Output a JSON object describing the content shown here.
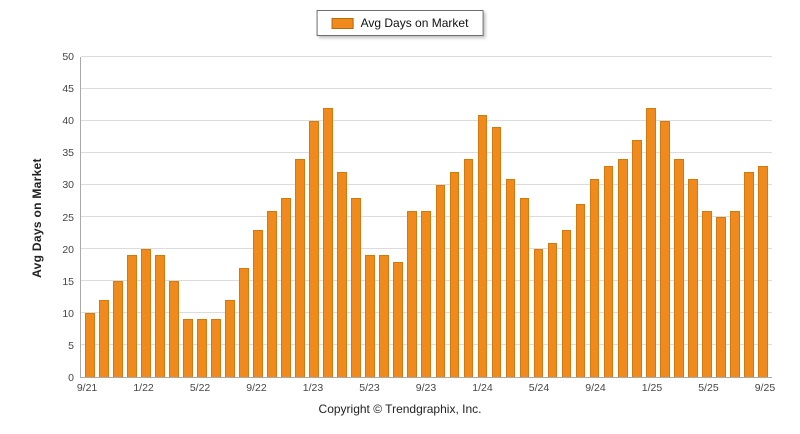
{
  "legend": {
    "label": "Avg Days on Market",
    "swatch_color": "#F18A1D"
  },
  "footer": {
    "copyright": "Copyright © Trendgraphix, Inc."
  },
  "chart_data": {
    "type": "bar",
    "title": "",
    "xlabel": "",
    "ylabel": "Avg Days on Market",
    "ylim": [
      0,
      50
    ],
    "ytick_step": 5,
    "grid": true,
    "legend_position": "top-center",
    "bar_color": "#F18A1D",
    "categories": [
      "9/21",
      "10/21",
      "11/21",
      "12/21",
      "1/22",
      "2/22",
      "3/22",
      "4/22",
      "5/22",
      "6/22",
      "7/22",
      "8/22",
      "9/22",
      "10/22",
      "11/22",
      "12/22",
      "1/23",
      "2/23",
      "3/23",
      "4/23",
      "5/23",
      "6/23",
      "7/23",
      "8/23",
      "9/23",
      "10/23",
      "11/23",
      "12/23",
      "1/24",
      "2/24",
      "3/24",
      "4/24",
      "5/24",
      "6/24",
      "7/24",
      "8/24",
      "9/24",
      "10/24",
      "11/24",
      "12/24",
      "1/25",
      "2/25",
      "3/25",
      "4/25",
      "5/25",
      "6/25",
      "7/25",
      "8/25",
      "9/25"
    ],
    "values": [
      10,
      12,
      15,
      19,
      20,
      19,
      15,
      9,
      9,
      9,
      12,
      17,
      23,
      26,
      28,
      34,
      40,
      42,
      32,
      28,
      19,
      19,
      18,
      26,
      26,
      30,
      32,
      34,
      41,
      39,
      31,
      28,
      20,
      21,
      23,
      27,
      31,
      33,
      34,
      37,
      42,
      40,
      34,
      31,
      26,
      25,
      26,
      32,
      33
    ],
    "x_tick_labels": [
      "9/21",
      "1/22",
      "5/22",
      "9/22",
      "1/23",
      "5/23",
      "9/23",
      "1/24",
      "5/24",
      "9/24",
      "1/25",
      "5/25",
      "9/25"
    ],
    "x_tick_indices": [
      0,
      4,
      8,
      12,
      16,
      20,
      24,
      28,
      32,
      36,
      40,
      44,
      48
    ],
    "y_tick_labels": [
      0,
      5,
      10,
      15,
      20,
      25,
      30,
      35,
      40,
      45,
      50
    ]
  }
}
